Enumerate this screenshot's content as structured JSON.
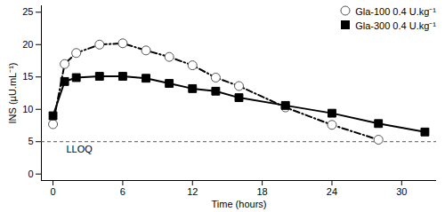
{
  "chart_data": {
    "type": "line",
    "x_label": "Time (hours)",
    "y_label": "INS (µU.mL⁻¹)",
    "xlim": [
      -1,
      33
    ],
    "xticks": [
      0,
      6,
      12,
      18,
      24,
      30
    ],
    "ylim": [
      -1,
      26
    ],
    "yticks": [
      0,
      5,
      10,
      15,
      20,
      25
    ],
    "grid": false,
    "legend": "top-right",
    "reference_lines": [
      {
        "value": 5,
        "label": "LLOQ",
        "line_style": "dashed"
      }
    ],
    "series": [
      {
        "name": "Gla-100 0.4 U.kg⁻¹",
        "color": "#000000",
        "marker": "open-circle",
        "line_style": "dashdot",
        "x": [
          0,
          1,
          2,
          4,
          6,
          8,
          10,
          12,
          14,
          16,
          20,
          24,
          28
        ],
        "values": [
          7.7,
          17,
          18.7,
          20,
          20.2,
          19.1,
          18.1,
          16.8,
          14.9,
          13.6,
          10.3,
          7.6,
          5.3
        ]
      },
      {
        "name": "Gla-300 0.4 U.kg⁻¹",
        "color": "#000000",
        "marker": "square",
        "line_style": "solid",
        "x": [
          0,
          1,
          2,
          4,
          6,
          8,
          10,
          12,
          14,
          16,
          20,
          24,
          28,
          32
        ],
        "values": [
          9,
          14.3,
          14.9,
          15.1,
          15.1,
          14.8,
          14,
          13.2,
          12.8,
          11.8,
          10.6,
          9.4,
          7.8,
          6.5
        ]
      }
    ]
  }
}
